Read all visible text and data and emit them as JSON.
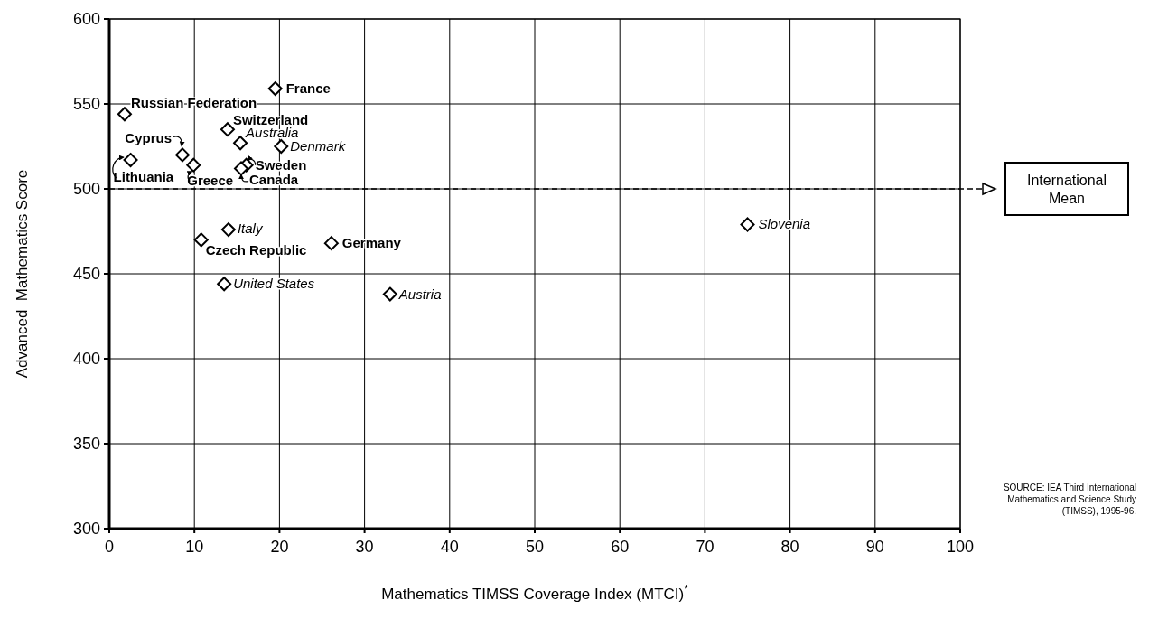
{
  "chart_data": {
    "type": "scatter",
    "xlabel": "Mathematics TIMSS Coverage Index (MTCI)$^{*}$",
    "ylabel": "Advanced  Mathematics Score",
    "x": [
      19.5,
      1.8,
      13.9,
      15.4,
      20.2,
      8.6,
      2.5,
      9.9,
      16.1,
      15.5,
      14.0,
      10.8,
      26.1,
      13.5,
      33.0,
      75.0
    ],
    "series": [
      {
        "color": "#000000",
        "values": [
          559,
          544,
          535,
          527,
          525,
          520,
          517,
          514,
          514,
          512,
          476,
          470,
          468,
          444,
          438,
          479
        ]
      }
    ],
    "marker": "diamond",
    "xlim": [
      0,
      100
    ],
    "xticks": [
      0,
      10,
      20,
      30,
      40,
      50,
      60,
      70,
      80,
      90,
      100
    ],
    "ylim": [
      300,
      600
    ],
    "yticks": [
      300,
      350,
      400,
      450,
      500,
      550,
      600
    ],
    "grid": true,
    "ref_lines": [
      {
        "axis": "y",
        "value": 500,
        "label": "International Mean",
        "line_style": "dashed",
        "color": "#000000"
      }
    ],
    "annotations": [
      {
        "text": "France",
        "x": 19.5,
        "y": 559
      },
      {
        "text": "Russian Federation",
        "x": 1.8,
        "y": 544
      },
      {
        "text": "Switzerland",
        "x": 13.9,
        "y": 535
      },
      {
        "text": "Australia",
        "x": 15.4,
        "y": 527
      },
      {
        "text": "Denmark",
        "x": 20.2,
        "y": 525
      },
      {
        "text": "Cyprus",
        "x": 8.6,
        "y": 520
      },
      {
        "text": "Lithuania",
        "x": 2.5,
        "y": 517
      },
      {
        "text": "Greece",
        "x": 9.9,
        "y": 514
      },
      {
        "text": "Sweden",
        "x": 16.1,
        "y": 514
      },
      {
        "text": "Canada",
        "x": 15.5,
        "y": 512
      },
      {
        "text": "Italy",
        "x": 14.0,
        "y": 476
      },
      {
        "text": "Czech Republic",
        "x": 10.8,
        "y": 470
      },
      {
        "text": "Germany",
        "x": 26.1,
        "y": 468
      },
      {
        "text": "United States",
        "x": 13.5,
        "y": 444
      },
      {
        "text": "Austria",
        "x": 33.0,
        "y": 438
      },
      {
        "text": "Slovenia",
        "x": 75.0,
        "y": 479
      },
      "SOURCE: IEA Third International Mathematics and Science Study (TIMSS), 1995-96."
    ]
  }
}
